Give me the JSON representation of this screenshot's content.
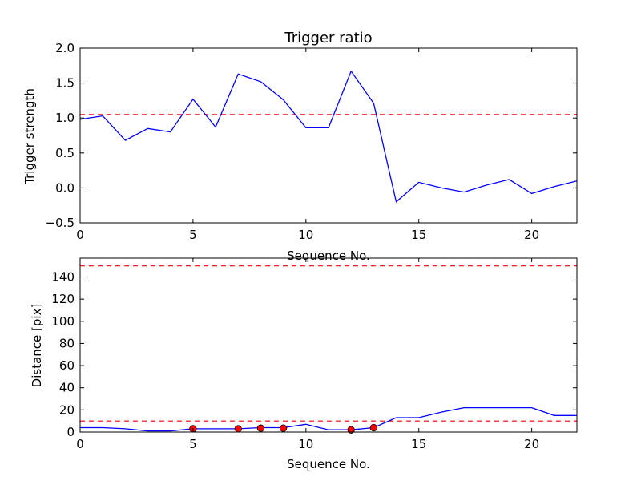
{
  "chart_data": [
    {
      "type": "line",
      "title": "Trigger ratio",
      "xlabel": "Sequence No.",
      "ylabel": "Trigger strength",
      "xlim": [
        0,
        22
      ],
      "ylim": [
        -0.5,
        2.0
      ],
      "xticks": [
        0,
        5,
        10,
        15,
        20
      ],
      "yticks": [
        -0.5,
        0.0,
        0.5,
        1.0,
        1.5,
        2.0
      ],
      "ytick_labels": [
        "−0.5",
        "0.0",
        "0.5",
        "1.0",
        "1.5",
        "2.0"
      ],
      "grid": false,
      "series": [
        {
          "color": "#0000ff",
          "x": [
            0,
            1,
            2,
            3,
            4,
            5,
            6,
            7,
            8,
            9,
            10,
            11,
            12,
            13,
            14,
            15,
            16,
            17,
            18,
            19,
            20,
            21,
            22
          ],
          "y": [
            0.98,
            1.03,
            0.68,
            0.85,
            0.8,
            1.27,
            0.87,
            1.63,
            1.52,
            1.26,
            0.86,
            0.86,
            1.67,
            1.21,
            -0.2,
            0.08,
            0.0,
            -0.06,
            0.04,
            0.12,
            -0.08,
            0.02,
            0.1
          ]
        }
      ],
      "hlines": [
        {
          "y": 1.05,
          "color": "#ff0000",
          "style": "dashed"
        }
      ]
    },
    {
      "type": "line",
      "title": "",
      "xlabel": "Sequence No.",
      "ylabel": "Distance [pix]",
      "xlim": [
        0,
        22
      ],
      "ylim": [
        0,
        157
      ],
      "xticks": [
        0,
        5,
        10,
        15,
        20
      ],
      "yticks": [
        0,
        20,
        40,
        60,
        80,
        100,
        120,
        140
      ],
      "ytick_labels": [
        "0",
        "20",
        "40",
        "60",
        "80",
        "100",
        "120",
        "140"
      ],
      "grid": false,
      "series": [
        {
          "color": "#0000ff",
          "x": [
            0,
            1,
            2,
            3,
            4,
            5,
            6,
            7,
            8,
            9,
            10,
            11,
            12,
            13,
            14,
            15,
            16,
            17,
            18,
            19,
            20,
            21,
            22
          ],
          "y": [
            4,
            4,
            3,
            1,
            1,
            3,
            3,
            3,
            4,
            4,
            7,
            2,
            2,
            4,
            13,
            13,
            18,
            22,
            22,
            22,
            22,
            15,
            15
          ]
        }
      ],
      "markers": {
        "color": "#ff0000",
        "x": [
          5,
          7,
          8,
          9,
          12,
          13
        ],
        "y": [
          3,
          3,
          3.5,
          3.5,
          2,
          4
        ]
      },
      "hlines": [
        {
          "y": 150,
          "color": "#ff0000",
          "style": "dashed"
        },
        {
          "y": 10,
          "color": "#ff0000",
          "style": "dashed"
        }
      ]
    }
  ]
}
